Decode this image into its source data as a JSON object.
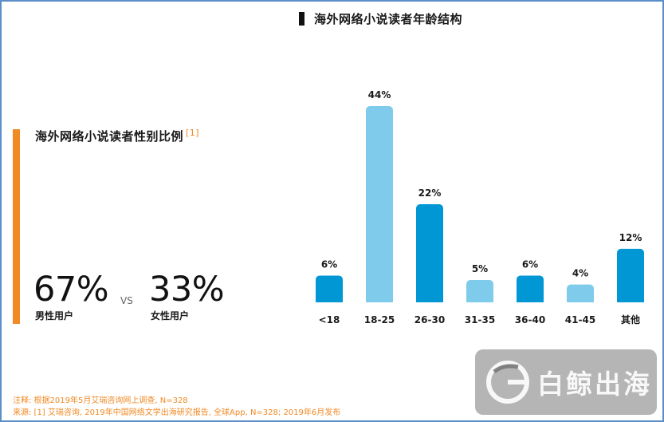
{
  "gender": {
    "title": "海外网络小说读者性别比例",
    "ref": "[1]",
    "male_pct": "67%",
    "female_pct": "33%",
    "vs": "VS",
    "male_label": "男性用户",
    "female_label": "女性用户"
  },
  "chart_data": {
    "type": "bar",
    "title": "海外网络小说读者年龄结构",
    "categories": [
      "<18",
      "18-25",
      "26-30",
      "31-35",
      "36-40",
      "41-45",
      "其他"
    ],
    "values": [
      6,
      44,
      22,
      5,
      6,
      4,
      12
    ],
    "data_labels": [
      "6%",
      "44%",
      "22%",
      "5%",
      "6%",
      "4%",
      "12%"
    ],
    "colors": [
      "#0097d4",
      "#7fcbec",
      "#0097d4",
      "#7fcbec",
      "#0097d4",
      "#7fcbec",
      "#0097d4"
    ],
    "ylim": [
      0,
      44
    ],
    "grid": false,
    "legend": "none"
  },
  "notes": {
    "note1": "注释: 根据2019年5月艾瑞咨询网上调查, N=328",
    "note2": "来源: [1] 艾瑞咨询, 2019年中国网络文学出海研究报告, 全球App, N=328; 2019年6月发布"
  },
  "watermark": {
    "text": "白鲸出海",
    "icon": "whale-g-logo-icon"
  }
}
